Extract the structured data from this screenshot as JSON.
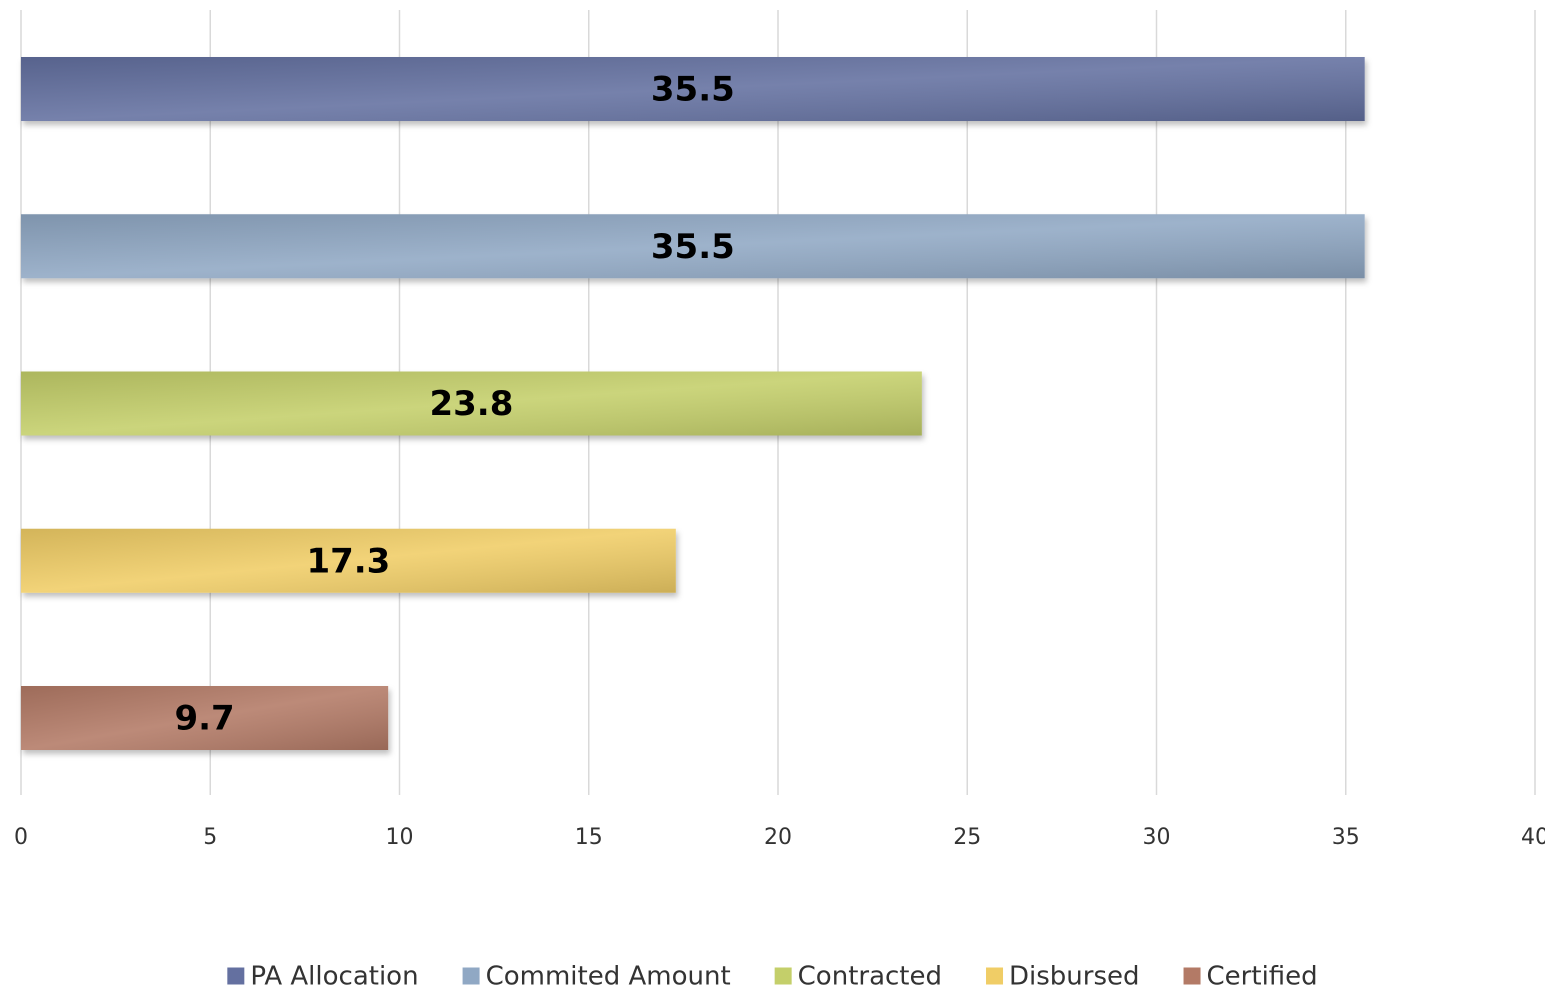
{
  "chart_data": {
    "type": "bar",
    "orientation": "horizontal",
    "series": [
      {
        "name": "PA Allocation",
        "color": "#6470a0",
        "values": [
          35.5
        ]
      },
      {
        "name": "Commited Amount",
        "color": "#90a8c4",
        "values": [
          35.5
        ]
      },
      {
        "name": "Contracted",
        "color": "#c4cf6a",
        "values": [
          23.8
        ]
      },
      {
        "name": "Disbursed",
        "color": "#f0cd66",
        "values": [
          17.3
        ]
      },
      {
        "name": "Certified",
        "color": "#b37a66",
        "values": [
          9.7
        ]
      }
    ],
    "xlim": [
      0,
      40
    ],
    "xticks": [
      0,
      5,
      10,
      15,
      20,
      25,
      30,
      35,
      40
    ],
    "grid": true,
    "legend": "bottom"
  }
}
